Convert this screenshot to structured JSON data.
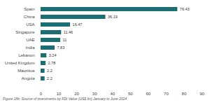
{
  "chart_data": {
    "type": "bar",
    "orientation": "horizontal",
    "caption": "Figure 18b: Source of investments by FDI Value (US$ bn) January to June 2024",
    "categories": [
      "Spain",
      "China",
      "USA",
      "Singapore",
      "UAE",
      "India",
      "Lebanon",
      "United Kingdom",
      "Mauritius",
      "Angola"
    ],
    "values": [
      76.43,
      36.19,
      16.47,
      11.46,
      11,
      7.83,
      3.24,
      2.78,
      2.2,
      2.2
    ],
    "color": "#1b6e72",
    "xlim": [
      0,
      90
    ],
    "xticks": [
      0,
      10,
      20,
      30,
      40,
      50,
      60,
      70,
      80,
      90
    ],
    "grid": false,
    "data_labels": true
  }
}
